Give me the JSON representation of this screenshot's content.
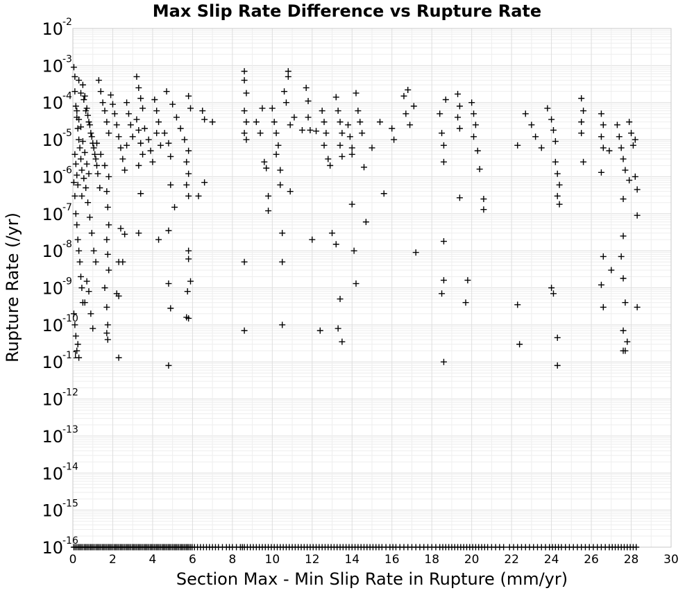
{
  "chart_data": {
    "type": "scatter",
    "title": "Max Slip Rate Difference vs Rupture Rate",
    "xlabel": "Section Max - Min Slip Rate in Rupture (mm/yr)",
    "ylabel": "Rupture Rate (/yr)",
    "xlim": [
      0,
      30
    ],
    "ylim": [
      1e-16,
      0.01
    ],
    "yscale": "log",
    "grid": true,
    "marker": "+",
    "marker_color": "#000000",
    "x_ticks": [
      "0",
      "2",
      "4",
      "6",
      "8",
      "10",
      "12",
      "14",
      "16",
      "18",
      "20",
      "22",
      "24",
      "26",
      "28",
      "30"
    ],
    "y_ticks": [
      {
        "base": "10",
        "exp": "-16",
        "exponent": -16
      },
      {
        "base": "10",
        "exp": "-15",
        "exponent": -15
      },
      {
        "base": "10",
        "exp": "-14",
        "exponent": -14
      },
      {
        "base": "10",
        "exp": "-13",
        "exponent": -13
      },
      {
        "base": "10",
        "exp": "-12",
        "exponent": -12
      },
      {
        "base": "10",
        "exp": "-11",
        "exponent": -11
      },
      {
        "base": "10",
        "exp": "-10",
        "exponent": -10
      },
      {
        "base": "10",
        "exp": "-9",
        "exponent": -9
      },
      {
        "base": "10",
        "exp": "-8",
        "exponent": -8
      },
      {
        "base": "10",
        "exp": "-7",
        "exponent": -7
      },
      {
        "base": "10",
        "exp": "-6",
        "exponent": -6
      },
      {
        "base": "10",
        "exp": "-5",
        "exponent": -5
      },
      {
        "base": "10",
        "exp": "-4",
        "exponent": -4
      },
      {
        "base": "10",
        "exp": "-3",
        "exponent": -3
      },
      {
        "base": "10",
        "exp": "-2",
        "exponent": -2
      }
    ],
    "points": [
      [
        0.05,
        0.0009
      ],
      [
        0.1,
        0.0005
      ],
      [
        0.1,
        0.0002
      ],
      [
        0.15,
        8e-05
      ],
      [
        0.2,
        4e-05
      ],
      [
        0.25,
        2e-05
      ],
      [
        0.3,
        1e-05
      ],
      [
        0.35,
        6e-06
      ],
      [
        0.4,
        3e-06
      ],
      [
        0.45,
        1.5e-06
      ],
      [
        0.05,
        7e-07
      ],
      [
        0.1,
        3e-07
      ],
      [
        0.15,
        1e-07
      ],
      [
        0.2,
        5e-08
      ],
      [
        0.25,
        2e-08
      ],
      [
        0.3,
        1e-08
      ],
      [
        0.35,
        5e-09
      ],
      [
        0.4,
        2e-09
      ],
      [
        0.45,
        1e-09
      ],
      [
        0.5,
        4e-10
      ],
      [
        0.05,
        2e-10
      ],
      [
        0.1,
        1e-10
      ],
      [
        0.15,
        5e-11
      ],
      [
        0.2,
        2e-11
      ],
      [
        0.25,
        3e-11
      ],
      [
        0.3,
        1.3e-11
      ],
      [
        0.5,
        0.0003
      ],
      [
        0.6,
        0.00015
      ],
      [
        0.7,
        7e-05
      ],
      [
        0.8,
        3e-05
      ],
      [
        0.9,
        1.5e-05
      ],
      [
        1.0,
        8e-06
      ],
      [
        1.1,
        4e-06
      ],
      [
        1.2,
        2e-06
      ],
      [
        0.55,
        9e-07
      ],
      [
        0.65,
        5e-07
      ],
      [
        0.75,
        2e-07
      ],
      [
        0.85,
        8e-08
      ],
      [
        0.95,
        3e-08
      ],
      [
        1.05,
        1e-08
      ],
      [
        1.15,
        5e-09
      ],
      [
        0.6,
        4e-10
      ],
      [
        0.9,
        2e-10
      ],
      [
        1.0,
        8e-11
      ],
      [
        0.7,
        1.5e-09
      ],
      [
        0.8,
        8e-10
      ],
      [
        1.3,
        0.0004
      ],
      [
        1.4,
        0.0002
      ],
      [
        1.5,
        0.0001
      ],
      [
        1.6,
        6e-05
      ],
      [
        1.7,
        3e-05
      ],
      [
        1.8,
        1.5e-05
      ],
      [
        1.2,
        8e-06
      ],
      [
        1.4,
        4e-06
      ],
      [
        1.6,
        2e-06
      ],
      [
        1.8,
        1e-06
      ],
      [
        1.7,
        4e-07
      ],
      [
        1.75,
        1.5e-07
      ],
      [
        1.8,
        5e-08
      ],
      [
        1.7,
        2e-08
      ],
      [
        1.75,
        8e-09
      ],
      [
        1.8,
        3e-09
      ],
      [
        1.6,
        1e-09
      ],
      [
        1.7,
        3e-10
      ],
      [
        1.75,
        1e-10
      ],
      [
        1.7,
        6e-11
      ],
      [
        1.75,
        4e-11
      ],
      [
        0.3,
        0.0004
      ],
      [
        0.4,
        0.00018
      ],
      [
        0.55,
        0.00012
      ],
      [
        0.65,
        6e-05
      ],
      [
        0.75,
        4.5e-05
      ],
      [
        0.85,
        2.5e-05
      ],
      [
        0.95,
        1.2e-05
      ],
      [
        1.05,
        6e-06
      ],
      [
        1.15,
        3e-06
      ],
      [
        1.25,
        1.2e-06
      ],
      [
        1.35,
        5e-07
      ],
      [
        0.2,
        6e-05
      ],
      [
        0.3,
        3.5e-05
      ],
      [
        0.4,
        2.2e-05
      ],
      [
        0.5,
        9e-06
      ],
      [
        0.6,
        4.5e-06
      ],
      [
        0.7,
        2.2e-06
      ],
      [
        0.8,
        1.2e-06
      ],
      [
        0.1,
        4e-06
      ],
      [
        0.15,
        2.2e-06
      ],
      [
        0.2,
        1.1e-06
      ],
      [
        0.25,
        6e-07
      ],
      [
        0.45,
        3e-07
      ],
      [
        1.9,
        0.00016
      ],
      [
        2.0,
        9e-05
      ],
      [
        2.1,
        5e-05
      ],
      [
        2.2,
        2.5e-05
      ],
      [
        2.3,
        1.2e-05
      ],
      [
        2.4,
        6e-06
      ],
      [
        2.5,
        3e-06
      ],
      [
        2.6,
        1.5e-06
      ],
      [
        2.4,
        4e-08
      ],
      [
        2.6,
        2.8e-08
      ],
      [
        2.3,
        5e-09
      ],
      [
        2.5,
        5e-09
      ],
      [
        2.2,
        7e-10
      ],
      [
        2.3,
        6e-10
      ],
      [
        2.3,
        1.3e-11
      ],
      [
        2.7,
        0.0001
      ],
      [
        2.8,
        5e-05
      ],
      [
        2.9,
        2.5e-05
      ],
      [
        3.0,
        1.2e-05
      ],
      [
        2.7,
        7e-06
      ],
      [
        3.2,
        0.0005
      ],
      [
        3.3,
        0.00025
      ],
      [
        3.4,
        0.00013
      ],
      [
        3.5,
        7e-05
      ],
      [
        3.2,
        3.5e-05
      ],
      [
        3.3,
        1.8e-05
      ],
      [
        3.4,
        8e-06
      ],
      [
        3.5,
        4e-06
      ],
      [
        3.3,
        2e-06
      ],
      [
        3.3,
        3e-08
      ],
      [
        3.4,
        3.5e-07
      ],
      [
        3.6,
        2e-05
      ],
      [
        3.8,
        1e-05
      ],
      [
        3.9,
        5e-06
      ],
      [
        4.0,
        2.5e-06
      ],
      [
        4.1,
        0.00012
      ],
      [
        4.2,
        6e-05
      ],
      [
        4.3,
        3e-05
      ],
      [
        4.2,
        1.5e-05
      ],
      [
        4.4,
        7e-06
      ],
      [
        4.3,
        2e-08
      ],
      [
        4.6,
        1.5e-05
      ],
      [
        4.8,
        8e-06
      ],
      [
        4.9,
        3.5e-06
      ],
      [
        4.8,
        3.5e-08
      ],
      [
        4.8,
        1.3e-09
      ],
      [
        4.9,
        2.8e-10
      ],
      [
        4.8,
        8e-12
      ],
      [
        4.9,
        6e-07
      ],
      [
        5.1,
        1.5e-07
      ],
      [
        4.7,
        0.0002
      ],
      [
        5.0,
        9e-05
      ],
      [
        5.2,
        4e-05
      ],
      [
        5.4,
        2e-05
      ],
      [
        5.6,
        1e-05
      ],
      [
        5.8,
        5e-06
      ],
      [
        5.7,
        2.5e-06
      ],
      [
        5.8,
        1.2e-06
      ],
      [
        5.7,
        6e-07
      ],
      [
        5.8,
        3e-07
      ],
      [
        5.8,
        1e-08
      ],
      [
        5.8,
        6e-09
      ],
      [
        5.9,
        1.5e-09
      ],
      [
        5.75,
        8e-10
      ],
      [
        5.8,
        1.5e-10
      ],
      [
        5.7,
        1.6e-10
      ],
      [
        5.8,
        0.00015
      ],
      [
        5.9,
        7e-05
      ],
      [
        6.3,
        3e-07
      ],
      [
        6.5,
        6e-05
      ],
      [
        6.6,
        3.5e-05
      ],
      [
        6.6,
        7e-07
      ],
      [
        7.0,
        3e-05
      ],
      [
        8.6,
        0.0007
      ],
      [
        8.6,
        0.0004
      ],
      [
        8.7,
        0.00018
      ],
      [
        8.6,
        6e-05
      ],
      [
        8.7,
        3e-05
      ],
      [
        8.6,
        1.5e-05
      ],
      [
        8.7,
        1e-05
      ],
      [
        8.6,
        5e-09
      ],
      [
        8.6,
        7e-11
      ],
      [
        9.2,
        3e-05
      ],
      [
        9.4,
        1.5e-05
      ],
      [
        9.5,
        7e-05
      ],
      [
        9.6,
        2.5e-06
      ],
      [
        9.7,
        1.7e-06
      ],
      [
        9.8,
        1.2e-07
      ],
      [
        9.8,
        3e-07
      ],
      [
        10.0,
        7e-05
      ],
      [
        10.1,
        3e-05
      ],
      [
        10.2,
        1.5e-05
      ],
      [
        10.3,
        7e-06
      ],
      [
        10.2,
        4e-06
      ],
      [
        10.4,
        1.5e-06
      ],
      [
        10.4,
        6e-07
      ],
      [
        10.5,
        3e-08
      ],
      [
        10.5,
        5e-09
      ],
      [
        10.5,
        1e-10
      ],
      [
        10.6,
        0.0002
      ],
      [
        10.7,
        0.0001
      ],
      [
        10.8,
        0.0005
      ],
      [
        10.8,
        0.0007
      ],
      [
        10.9,
        2.5e-05
      ],
      [
        10.9,
        4e-07
      ],
      [
        11.1,
        4e-05
      ],
      [
        11.5,
        1.8e-05
      ],
      [
        11.7,
        0.00025
      ],
      [
        11.8,
        0.00011
      ],
      [
        11.8,
        4e-05
      ],
      [
        11.9,
        1.8e-05
      ],
      [
        12.0,
        2e-08
      ],
      [
        12.2,
        1.7e-05
      ],
      [
        12.4,
        7e-11
      ],
      [
        12.5,
        6e-05
      ],
      [
        12.6,
        3e-05
      ],
      [
        12.7,
        1.5e-05
      ],
      [
        12.6,
        7e-06
      ],
      [
        12.8,
        3e-06
      ],
      [
        12.9,
        2e-06
      ],
      [
        13.0,
        3e-08
      ],
      [
        13.2,
        0.00014
      ],
      [
        13.3,
        6e-05
      ],
      [
        13.4,
        3e-05
      ],
      [
        13.5,
        1.5e-05
      ],
      [
        13.4,
        7e-06
      ],
      [
        13.5,
        3.5e-06
      ],
      [
        13.2,
        1.5e-08
      ],
      [
        13.3,
        8e-11
      ],
      [
        13.4,
        5e-10
      ],
      [
        13.5,
        3.5e-11
      ],
      [
        13.8,
        2.5e-05
      ],
      [
        13.9,
        1.2e-05
      ],
      [
        14.0,
        6e-06
      ],
      [
        14.0,
        1.8e-07
      ],
      [
        14.1,
        1e-08
      ],
      [
        14.2,
        1.3e-09
      ],
      [
        14.0,
        4e-06
      ],
      [
        14.2,
        0.00018
      ],
      [
        14.3,
        6e-05
      ],
      [
        14.4,
        3e-05
      ],
      [
        14.5,
        1.5e-05
      ],
      [
        14.6,
        1.8e-06
      ],
      [
        14.7,
        6e-08
      ],
      [
        15.0,
        6e-06
      ],
      [
        15.4,
        3e-05
      ],
      [
        15.6,
        3.5e-07
      ],
      [
        16.0,
        2e-05
      ],
      [
        16.1,
        1e-05
      ],
      [
        16.6,
        0.00015
      ],
      [
        16.7,
        5e-05
      ],
      [
        16.8,
        0.00022
      ],
      [
        16.9,
        2.5e-05
      ],
      [
        17.1,
        8e-05
      ],
      [
        17.2,
        9e-09
      ],
      [
        18.4,
        5e-05
      ],
      [
        18.5,
        1.5e-05
      ],
      [
        18.6,
        7e-06
      ],
      [
        18.6,
        2.5e-06
      ],
      [
        18.6,
        1.8e-08
      ],
      [
        18.6,
        1.6e-09
      ],
      [
        18.5,
        7e-10
      ],
      [
        18.6,
        1e-11
      ],
      [
        18.7,
        0.00012
      ],
      [
        19.3,
        0.00017
      ],
      [
        19.4,
        8e-05
      ],
      [
        19.3,
        4e-05
      ],
      [
        19.4,
        2e-05
      ],
      [
        19.4,
        2.7e-07
      ],
      [
        19.8,
        1.6e-09
      ],
      [
        19.7,
        4e-10
      ],
      [
        20.0,
        0.0001
      ],
      [
        20.1,
        5e-05
      ],
      [
        20.2,
        2.5e-05
      ],
      [
        20.1,
        1.2e-05
      ],
      [
        20.3,
        5e-06
      ],
      [
        20.4,
        1.6e-06
      ],
      [
        20.6,
        2.5e-07
      ],
      [
        20.6,
        1.3e-07
      ],
      [
        22.3,
        7e-06
      ],
      [
        22.3,
        3.5e-10
      ],
      [
        22.4,
        3e-11
      ],
      [
        22.7,
        5e-05
      ],
      [
        23.0,
        2.5e-05
      ],
      [
        23.2,
        1.2e-05
      ],
      [
        23.5,
        6e-06
      ],
      [
        23.8,
        7e-05
      ],
      [
        24.0,
        3.5e-05
      ],
      [
        24.1,
        1.8e-05
      ],
      [
        24.2,
        9e-06
      ],
      [
        24.0,
        1e-09
      ],
      [
        24.1,
        7e-10
      ],
      [
        24.2,
        2.5e-06
      ],
      [
        24.3,
        1.2e-06
      ],
      [
        24.4,
        6e-07
      ],
      [
        24.3,
        3e-07
      ],
      [
        24.4,
        1.8e-07
      ],
      [
        24.3,
        4.5e-11
      ],
      [
        24.3,
        8e-12
      ],
      [
        25.5,
        0.00013
      ],
      [
        25.6,
        6e-05
      ],
      [
        25.5,
        3e-05
      ],
      [
        25.5,
        1.5e-05
      ],
      [
        25.6,
        2.5e-06
      ],
      [
        26.5,
        5e-05
      ],
      [
        26.6,
        2.5e-05
      ],
      [
        26.5,
        1.2e-05
      ],
      [
        26.6,
        6e-06
      ],
      [
        26.5,
        1.3e-06
      ],
      [
        26.6,
        7e-09
      ],
      [
        26.5,
        1.2e-09
      ],
      [
        26.6,
        3e-10
      ],
      [
        26.9,
        5e-06
      ],
      [
        27.0,
        3e-09
      ],
      [
        27.3,
        2.5e-05
      ],
      [
        27.4,
        1.2e-05
      ],
      [
        27.5,
        6e-06
      ],
      [
        27.6,
        3e-06
      ],
      [
        27.7,
        1.5e-06
      ],
      [
        27.6,
        2.5e-07
      ],
      [
        27.6,
        2.5e-08
      ],
      [
        27.5,
        7e-09
      ],
      [
        27.6,
        1.8e-09
      ],
      [
        27.7,
        4e-10
      ],
      [
        27.6,
        7e-11
      ],
      [
        27.6,
        2e-11
      ],
      [
        27.7,
        2e-11
      ],
      [
        27.8,
        3.5e-11
      ],
      [
        27.9,
        3e-05
      ],
      [
        28.0,
        1.5e-05
      ],
      [
        28.1,
        7e-06
      ],
      [
        28.2,
        1e-06
      ],
      [
        28.3,
        4.5e-07
      ],
      [
        28.3,
        9e-08
      ],
      [
        28.3,
        3e-10
      ],
      [
        28.2,
        1e-05
      ],
      [
        27.9,
        8e-07
      ]
    ],
    "floor_points_x": [
      0.05,
      0.12,
      0.2,
      0.28,
      0.35,
      0.42,
      0.5,
      0.58,
      0.65,
      0.72,
      0.8,
      0.88,
      0.95,
      1.02,
      1.1,
      1.18,
      1.25,
      1.32,
      1.4,
      1.48,
      1.55,
      1.62,
      1.7,
      1.78,
      1.85,
      1.92,
      2.0,
      2.08,
      2.15,
      2.22,
      2.3,
      2.38,
      2.45,
      2.52,
      2.6,
      2.68,
      2.75,
      2.82,
      2.9,
      2.98,
      3.05,
      3.12,
      3.2,
      3.28,
      3.35,
      3.42,
      3.5,
      3.58,
      3.65,
      3.72,
      3.8,
      3.88,
      3.95,
      4.02,
      4.1,
      4.18,
      4.25,
      4.32,
      4.4,
      4.48,
      4.55,
      4.62,
      4.7,
      4.78,
      4.85,
      4.92,
      5.0,
      5.08,
      5.15,
      5.22,
      5.3,
      5.38,
      5.45,
      5.52,
      5.6,
      5.68,
      5.75,
      5.82,
      5.9,
      5.98,
      6.1,
      6.25,
      6.4,
      6.55,
      6.7,
      6.85,
      7.0,
      7.15,
      7.3,
      7.5,
      7.7,
      7.85,
      8.0,
      8.2,
      8.4,
      8.5,
      8.6,
      8.75,
      8.9,
      9.05,
      9.2,
      9.35,
      9.5,
      9.65,
      9.8,
      9.95,
      10.1,
      10.25,
      10.4,
      10.55,
      10.7,
      10.85,
      11.0,
      11.15,
      11.3,
      11.45,
      11.6,
      11.75,
      11.9,
      12.05,
      12.2,
      12.35,
      12.5,
      12.65,
      12.8,
      12.95,
      13.1,
      13.25,
      13.4,
      13.55,
      13.7,
      13.85,
      14.0,
      14.15,
      14.3,
      14.45,
      14.6,
      14.75,
      14.9,
      15.05,
      15.2,
      15.35,
      15.5,
      15.7,
      15.9,
      16.05,
      16.2,
      16.4,
      16.6,
      16.8,
      17.0,
      17.2,
      17.4,
      17.6,
      17.8,
      18.0,
      18.2,
      18.4,
      18.55,
      18.7,
      18.85,
      19.0,
      19.15,
      19.3,
      19.45,
      19.6,
      19.75,
      19.9,
      20.05,
      20.2,
      20.35,
      20.5,
      20.65,
      20.8,
      21.0,
      21.2,
      21.4,
      21.6,
      21.9,
      22.1,
      22.3,
      22.5,
      22.7,
      22.9,
      23.1,
      23.3,
      23.5,
      23.7,
      23.9,
      24.05,
      24.2,
      24.35,
      24.5,
      24.7,
      24.9,
      25.1,
      25.3,
      25.5,
      25.7,
      25.9,
      26.1,
      26.3,
      26.5,
      26.7,
      26.9,
      27.05,
      27.2,
      27.35,
      27.5,
      27.65,
      27.8,
      27.95,
      28.1,
      28.25
    ]
  }
}
